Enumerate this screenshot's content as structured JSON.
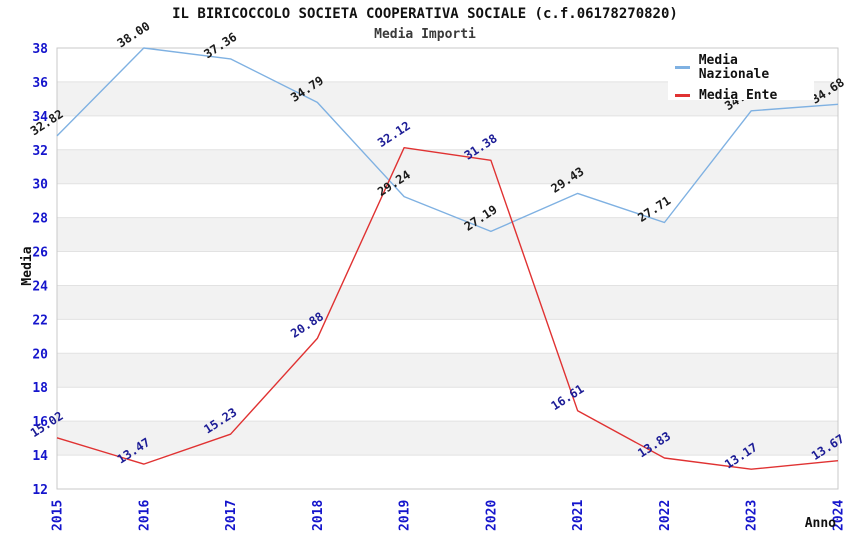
{
  "chart_data": {
    "type": "line",
    "title": "IL BIRICOCCOLO SOCIETA COOPERATIVA SOCIALE (c.f.06178270820)",
    "subtitle": "Media Importi",
    "xlabel": "Anno",
    "ylabel": "Media",
    "ylim": [
      12,
      38
    ],
    "ytick_step": 2,
    "grid": "horizontal-bands",
    "legend_position": "top-right",
    "categories": [
      "2015",
      "2016",
      "2017",
      "2018",
      "2019",
      "2020",
      "2021",
      "2022",
      "2023",
      "2024"
    ],
    "series": [
      {
        "name": "Media Nazionale",
        "color": "#7fb1e2",
        "label_color": "#1a1a1a",
        "values": [
          32.82,
          38.0,
          37.36,
          34.79,
          29.24,
          27.19,
          29.43,
          27.71,
          34.3,
          34.68
        ]
      },
      {
        "name": "Media Ente",
        "color": "#e03232",
        "label_color": "#1c1c96",
        "values": [
          15.02,
          13.47,
          15.23,
          20.88,
          32.12,
          31.38,
          16.61,
          13.83,
          13.17,
          13.67
        ]
      }
    ],
    "colors": {
      "tick": "#1515cc",
      "band": "#f2f2f2",
      "grid": "#e2e2e2",
      "frame": "#c9c9c9",
      "axis_label": "#111111"
    }
  }
}
